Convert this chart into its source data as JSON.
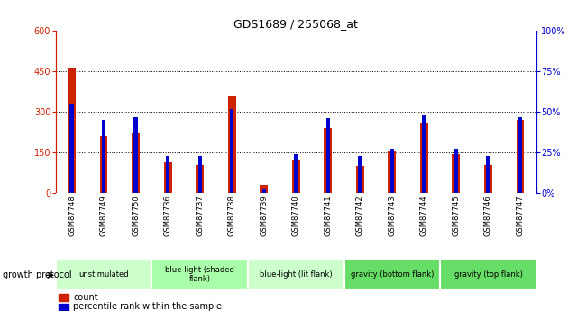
{
  "title": "GDS1689 / 255068_at",
  "samples": [
    "GSM87748",
    "GSM87749",
    "GSM87750",
    "GSM87736",
    "GSM87737",
    "GSM87738",
    "GSM87739",
    "GSM87740",
    "GSM87741",
    "GSM87742",
    "GSM87743",
    "GSM87744",
    "GSM87745",
    "GSM87746",
    "GSM87747"
  ],
  "counts": [
    465,
    210,
    220,
    115,
    105,
    360,
    30,
    120,
    240,
    100,
    155,
    260,
    145,
    105,
    270
  ],
  "percentiles": [
    55,
    45,
    47,
    23,
    23,
    52,
    2,
    24,
    46,
    23,
    27,
    48,
    27,
    23,
    47
  ],
  "ylim_left": [
    0,
    600
  ],
  "ylim_right": [
    0,
    100
  ],
  "yticks_left": [
    0,
    150,
    300,
    450,
    600
  ],
  "yticks_right": [
    0,
    25,
    50,
    75,
    100
  ],
  "groups": [
    {
      "label": "unstimulated",
      "start": 0,
      "end": 3,
      "color": "#ccffcc"
    },
    {
      "label": "blue-light (shaded\nflank)",
      "start": 3,
      "end": 6,
      "color": "#aaffaa"
    },
    {
      "label": "blue-light (lit flank)",
      "start": 6,
      "end": 9,
      "color": "#ccffcc"
    },
    {
      "label": "gravity (bottom flank)",
      "start": 9,
      "end": 12,
      "color": "#66dd66"
    },
    {
      "label": "gravity (top flank)",
      "start": 12,
      "end": 15,
      "color": "#66dd66"
    }
  ],
  "bar_color_red": "#cc2200",
  "bar_color_blue": "#0000cc",
  "bg_color": "#cccccc",
  "plot_bg": "#ffffff"
}
